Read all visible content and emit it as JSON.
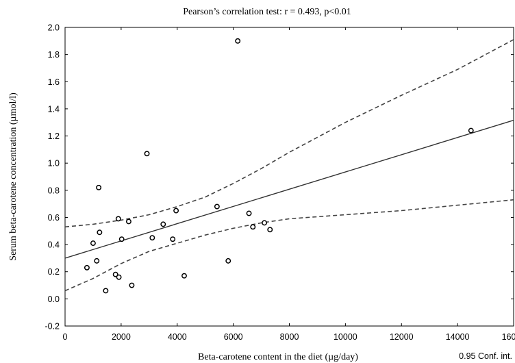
{
  "chart_data": {
    "type": "scatter",
    "title": "Pearson’s correlation test: r = 0.493, p<0.01",
    "xlabel": "Beta-carotene content in the diet (µg/day)",
    "ylabel": "Serum beta-carotene concentration (µmol/l)",
    "legend_label": "0.95 Conf. int.",
    "legend_position": "bottom-right",
    "grid": false,
    "xlim": [
      0,
      16000
    ],
    "ylim": [
      -0.2,
      2.0
    ],
    "xticks": [
      0,
      2000,
      4000,
      6000,
      8000,
      10000,
      12000,
      14000,
      16000
    ],
    "xtick_labels": [
      "0",
      "2000",
      "4000",
      "6000",
      "8000",
      "10000",
      "12000",
      "14000",
      "16000"
    ],
    "yticks": [
      -0.2,
      0.0,
      0.2,
      0.4,
      0.6,
      0.8,
      1.0,
      1.2,
      1.4,
      1.6,
      1.8,
      2.0
    ],
    "ytick_labels": [
      "-0.2",
      "0.0",
      "0.2",
      "0.4",
      "0.6",
      "0.8",
      "1.0",
      "1.2",
      "1.4",
      "1.6",
      "1.8",
      "2.0"
    ],
    "points": [
      {
        "x": 780,
        "y": 0.23
      },
      {
        "x": 1000,
        "y": 0.41
      },
      {
        "x": 1130,
        "y": 0.28
      },
      {
        "x": 1200,
        "y": 0.82
      },
      {
        "x": 1230,
        "y": 0.49
      },
      {
        "x": 1450,
        "y": 0.06
      },
      {
        "x": 1800,
        "y": 0.18
      },
      {
        "x": 1920,
        "y": 0.16
      },
      {
        "x": 1900,
        "y": 0.59
      },
      {
        "x": 2020,
        "y": 0.44
      },
      {
        "x": 2270,
        "y": 0.57
      },
      {
        "x": 2380,
        "y": 0.1
      },
      {
        "x": 2920,
        "y": 1.07
      },
      {
        "x": 3110,
        "y": 0.45
      },
      {
        "x": 3500,
        "y": 0.55
      },
      {
        "x": 3840,
        "y": 0.44
      },
      {
        "x": 3960,
        "y": 0.65
      },
      {
        "x": 4250,
        "y": 0.17
      },
      {
        "x": 5420,
        "y": 0.68
      },
      {
        "x": 5820,
        "y": 0.28
      },
      {
        "x": 6160,
        "y": 1.9
      },
      {
        "x": 6560,
        "y": 0.63
      },
      {
        "x": 6700,
        "y": 0.53
      },
      {
        "x": 7110,
        "y": 0.56
      },
      {
        "x": 7310,
        "y": 0.51
      },
      {
        "x": 14480,
        "y": 1.24
      }
    ],
    "regression_line": {
      "intercept": 0.3,
      "slope": 6.35e-05
    },
    "confidence_upper": [
      {
        "x": 0,
        "y": 0.53
      },
      {
        "x": 1000,
        "y": 0.55
      },
      {
        "x": 2000,
        "y": 0.58
      },
      {
        "x": 3000,
        "y": 0.62
      },
      {
        "x": 4000,
        "y": 0.68
      },
      {
        "x": 5000,
        "y": 0.75
      },
      {
        "x": 6000,
        "y": 0.85
      },
      {
        "x": 7000,
        "y": 0.96
      },
      {
        "x": 8000,
        "y": 1.08
      },
      {
        "x": 10000,
        "y": 1.3
      },
      {
        "x": 12000,
        "y": 1.5
      },
      {
        "x": 14000,
        "y": 1.69
      },
      {
        "x": 16000,
        "y": 1.91
      }
    ],
    "confidence_lower": [
      {
        "x": 0,
        "y": 0.06
      },
      {
        "x": 1000,
        "y": 0.15
      },
      {
        "x": 2000,
        "y": 0.26
      },
      {
        "x": 3000,
        "y": 0.35
      },
      {
        "x": 4000,
        "y": 0.41
      },
      {
        "x": 5000,
        "y": 0.47
      },
      {
        "x": 6000,
        "y": 0.52
      },
      {
        "x": 7000,
        "y": 0.56
      },
      {
        "x": 8000,
        "y": 0.59
      },
      {
        "x": 10000,
        "y": 0.62
      },
      {
        "x": 12000,
        "y": 0.65
      },
      {
        "x": 14000,
        "y": 0.69
      },
      {
        "x": 16000,
        "y": 0.73
      }
    ]
  }
}
